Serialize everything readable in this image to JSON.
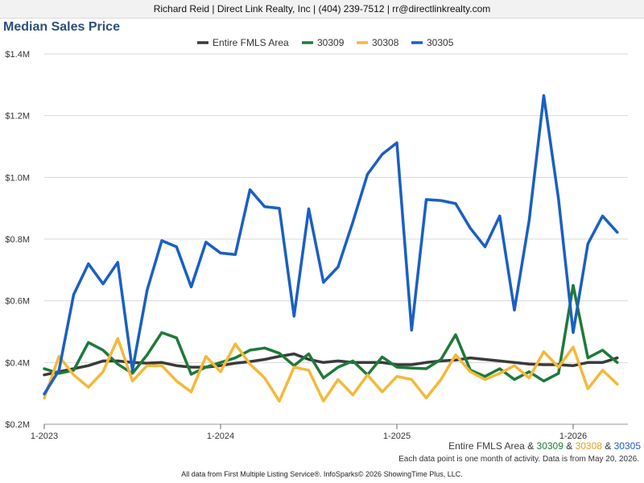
{
  "header": {
    "contact": "Richard Reid | Direct Link Realty, Inc | (404) 239-7512 | rr@directlinkrealty.com"
  },
  "chart_data": {
    "type": "line",
    "title": "Median Sales Price",
    "xlabel": "",
    "ylabel": "",
    "ylim": [
      200000,
      1400000
    ],
    "y_ticks": [
      {
        "value": 200000,
        "label": "$0.2M"
      },
      {
        "value": 400000,
        "label": "$0.4M"
      },
      {
        "value": 600000,
        "label": "$0.6M"
      },
      {
        "value": 800000,
        "label": "$0.8M"
      },
      {
        "value": 1000000,
        "label": "$1.0M"
      },
      {
        "value": 1200000,
        "label": "$1.2M"
      },
      {
        "value": 1400000,
        "label": "$1.4M"
      }
    ],
    "x_start": "2023-01",
    "x_end": "2026-04",
    "x_tick_labels": [
      {
        "month": "2023-01",
        "label": "1-2023"
      },
      {
        "month": "2024-01",
        "label": "1-2024"
      },
      {
        "month": "2025-01",
        "label": "1-2025"
      },
      {
        "month": "2026-01",
        "label": "1-2026"
      }
    ],
    "grid": "horizontal",
    "legend_position": "top",
    "series": [
      {
        "name": "Entire FMLS Area",
        "color": "#3a3a3a",
        "values": [
          360000,
          370000,
          380000,
          390000,
          405000,
          405000,
          400000,
          398000,
          400000,
          390000,
          385000,
          385000,
          390000,
          398000,
          403000,
          410000,
          420000,
          428000,
          410000,
          400000,
          405000,
          400000,
          400000,
          400000,
          393000,
          393000,
          400000,
          405000,
          408000,
          415000,
          410000,
          405000,
          400000,
          395000,
          393000,
          393000,
          390000,
          400000,
          400000,
          415000
        ]
      },
      {
        "name": "30309",
        "color": "#1e7a3a",
        "values": [
          380000,
          365000,
          375000,
          465000,
          440000,
          395000,
          365000,
          425000,
          497000,
          480000,
          362000,
          385000,
          400000,
          415000,
          440000,
          447000,
          430000,
          390000,
          428000,
          350000,
          385000,
          405000,
          360000,
          418000,
          385000,
          382000,
          380000,
          410000,
          490000,
          375000,
          355000,
          380000,
          345000,
          370000,
          340000,
          365000,
          650000,
          415000,
          440000,
          400000
        ]
      },
      {
        "name": "30308",
        "color": "#f4b93a",
        "values": [
          285000,
          420000,
          360000,
          320000,
          370000,
          478000,
          340000,
          390000,
          390000,
          340000,
          305000,
          420000,
          370000,
          460000,
          395000,
          350000,
          275000,
          385000,
          375000,
          275000,
          345000,
          295000,
          360000,
          305000,
          355000,
          345000,
          285000,
          345000,
          425000,
          370000,
          345000,
          365000,
          390000,
          350000,
          435000,
          385000,
          450000,
          315000,
          375000,
          330000
        ]
      },
      {
        "name": "30305",
        "color": "#1a5fc4",
        "values": [
          298000,
          375000,
          620000,
          720000,
          655000,
          725000,
          375000,
          635000,
          795000,
          775000,
          645000,
          790000,
          755000,
          750000,
          960000,
          905000,
          900000,
          550000,
          898000,
          660000,
          710000,
          855000,
          1010000,
          1075000,
          1112000,
          505000,
          928000,
          925000,
          915000,
          835000,
          775000,
          875000,
          570000,
          860000,
          1265000,
          930000,
          497000,
          785000,
          875000,
          822000
        ]
      }
    ]
  },
  "footer": {
    "legend_items": [
      {
        "text": "Entire FMLS Area",
        "color": "#3a3a3a"
      },
      {
        "text": " & ",
        "color": "#333333"
      },
      {
        "text": "30309",
        "color": "#1e7a3a"
      },
      {
        "text": " & ",
        "color": "#333333"
      },
      {
        "text": "30308",
        "color": "#e0a020"
      },
      {
        "text": " & ",
        "color": "#333333"
      },
      {
        "text": "30305",
        "color": "#1a5fc4"
      }
    ],
    "note": "Each data point is one month of activity. Data is from May 20, 2026.",
    "source": "All data from First Multiple Listing Service®. InfoSparks© 2026 ShowingTime Plus, LLC."
  }
}
